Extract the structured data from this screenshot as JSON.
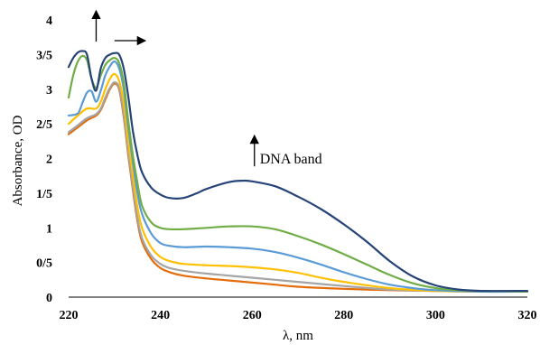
{
  "chart_data": {
    "type": "line",
    "title": "",
    "xlabel": "λ, nm",
    "ylabel": "Absorbance, OD",
    "xlim": [
      220,
      320
    ],
    "ylim": [
      0,
      4
    ],
    "x_ticks": [
      "220",
      "240",
      "260",
      "280",
      "300",
      "320"
    ],
    "y_ticks": [
      "0",
      "0/5",
      "1",
      "1/5",
      "2",
      "2/5",
      "3",
      "3/5",
      "4"
    ],
    "grid": false,
    "legend": "none",
    "annotations": [
      {
        "text": "DNA band",
        "arrow": "up",
        "x": 260.5,
        "y": 1.9
      },
      {
        "text": "",
        "arrow": "up",
        "x": 226,
        "y": 3.7
      },
      {
        "text": "",
        "arrow": "right",
        "x": 230,
        "y": 3.7
      }
    ],
    "series": [
      {
        "color": "#E46C0A",
        "points": [
          [
            220,
            2.35
          ],
          [
            222,
            2.45
          ],
          [
            224,
            2.55
          ],
          [
            226,
            2.62
          ],
          [
            227,
            2.7
          ],
          [
            228,
            2.85
          ],
          [
            229,
            3.0
          ],
          [
            230,
            3.08
          ],
          [
            231,
            3.0
          ],
          [
            232,
            2.6
          ],
          [
            233,
            2.05
          ],
          [
            234,
            1.55
          ],
          [
            235,
            1.1
          ],
          [
            236,
            0.8
          ],
          [
            238,
            0.55
          ],
          [
            240,
            0.42
          ],
          [
            242,
            0.36
          ],
          [
            245,
            0.31
          ],
          [
            250,
            0.27
          ],
          [
            255,
            0.24
          ],
          [
            260,
            0.21
          ],
          [
            265,
            0.18
          ],
          [
            270,
            0.15
          ],
          [
            280,
            0.12
          ],
          [
            290,
            0.1
          ],
          [
            300,
            0.09
          ],
          [
            310,
            0.08
          ],
          [
            320,
            0.08
          ]
        ]
      },
      {
        "color": "#A5A5A5",
        "points": [
          [
            220,
            2.38
          ],
          [
            222,
            2.48
          ],
          [
            224,
            2.58
          ],
          [
            226,
            2.64
          ],
          [
            227,
            2.72
          ],
          [
            228,
            2.88
          ],
          [
            229,
            3.02
          ],
          [
            230,
            3.1
          ],
          [
            231,
            3.02
          ],
          [
            232,
            2.65
          ],
          [
            233,
            2.1
          ],
          [
            234,
            1.6
          ],
          [
            235,
            1.15
          ],
          [
            236,
            0.85
          ],
          [
            238,
            0.6
          ],
          [
            240,
            0.48
          ],
          [
            242,
            0.42
          ],
          [
            245,
            0.38
          ],
          [
            250,
            0.34
          ],
          [
            255,
            0.31
          ],
          [
            260,
            0.28
          ],
          [
            265,
            0.25
          ],
          [
            270,
            0.22
          ],
          [
            280,
            0.16
          ],
          [
            290,
            0.11
          ],
          [
            300,
            0.09
          ],
          [
            310,
            0.08
          ],
          [
            320,
            0.08
          ]
        ]
      },
      {
        "color": "#FFC000",
        "points": [
          [
            220,
            2.5
          ],
          [
            222,
            2.62
          ],
          [
            224,
            2.72
          ],
          [
            226,
            2.72
          ],
          [
            227,
            2.82
          ],
          [
            228,
            3.0
          ],
          [
            229,
            3.15
          ],
          [
            230,
            3.22
          ],
          [
            231,
            3.12
          ],
          [
            232,
            2.8
          ],
          [
            233,
            2.25
          ],
          [
            234,
            1.75
          ],
          [
            235,
            1.3
          ],
          [
            236,
            1.0
          ],
          [
            238,
            0.72
          ],
          [
            240,
            0.58
          ],
          [
            242,
            0.52
          ],
          [
            245,
            0.48
          ],
          [
            250,
            0.46
          ],
          [
            255,
            0.45
          ],
          [
            260,
            0.43
          ],
          [
            265,
            0.4
          ],
          [
            270,
            0.35
          ],
          [
            275,
            0.28
          ],
          [
            280,
            0.22
          ],
          [
            290,
            0.13
          ],
          [
            300,
            0.09
          ],
          [
            310,
            0.08
          ],
          [
            320,
            0.08
          ]
        ]
      },
      {
        "color": "#5B9BD5",
        "points": [
          [
            220,
            2.62
          ],
          [
            222,
            2.65
          ],
          [
            223,
            2.8
          ],
          [
            224,
            2.95
          ],
          [
            225,
            2.97
          ],
          [
            226,
            2.82
          ],
          [
            227,
            2.98
          ],
          [
            228,
            3.2
          ],
          [
            229,
            3.33
          ],
          [
            230,
            3.4
          ],
          [
            231,
            3.3
          ],
          [
            232,
            3.0
          ],
          [
            233,
            2.45
          ],
          [
            234,
            1.95
          ],
          [
            235,
            1.5
          ],
          [
            236,
            1.2
          ],
          [
            238,
            0.92
          ],
          [
            240,
            0.78
          ],
          [
            242,
            0.74
          ],
          [
            245,
            0.72
          ],
          [
            250,
            0.73
          ],
          [
            255,
            0.72
          ],
          [
            260,
            0.7
          ],
          [
            265,
            0.65
          ],
          [
            270,
            0.57
          ],
          [
            275,
            0.47
          ],
          [
            280,
            0.36
          ],
          [
            285,
            0.26
          ],
          [
            290,
            0.18
          ],
          [
            295,
            0.13
          ],
          [
            300,
            0.1
          ],
          [
            310,
            0.08
          ],
          [
            320,
            0.08
          ]
        ]
      },
      {
        "color": "#70AD47",
        "points": [
          [
            220,
            2.88
          ],
          [
            221,
            3.2
          ],
          [
            222,
            3.4
          ],
          [
            223,
            3.48
          ],
          [
            224,
            3.42
          ],
          [
            225,
            3.15
          ],
          [
            226,
            3.02
          ],
          [
            227,
            3.2
          ],
          [
            228,
            3.35
          ],
          [
            229,
            3.42
          ],
          [
            230,
            3.45
          ],
          [
            231,
            3.38
          ],
          [
            232,
            3.1
          ],
          [
            233,
            2.55
          ],
          [
            234,
            2.05
          ],
          [
            235,
            1.65
          ],
          [
            236,
            1.32
          ],
          [
            238,
            1.08
          ],
          [
            240,
            1.0
          ],
          [
            242,
            0.98
          ],
          [
            245,
            0.98
          ],
          [
            250,
            1.0
          ],
          [
            255,
            1.02
          ],
          [
            260,
            1.02
          ],
          [
            265,
            0.98
          ],
          [
            270,
            0.88
          ],
          [
            275,
            0.76
          ],
          [
            280,
            0.62
          ],
          [
            285,
            0.47
          ],
          [
            290,
            0.32
          ],
          [
            295,
            0.2
          ],
          [
            300,
            0.13
          ],
          [
            305,
            0.1
          ],
          [
            310,
            0.09
          ],
          [
            320,
            0.08
          ]
        ]
      },
      {
        "color": "#264478",
        "points": [
          [
            220,
            3.32
          ],
          [
            221,
            3.45
          ],
          [
            222,
            3.53
          ],
          [
            223,
            3.55
          ],
          [
            224,
            3.5
          ],
          [
            225,
            3.15
          ],
          [
            226,
            2.98
          ],
          [
            227,
            3.3
          ],
          [
            228,
            3.45
          ],
          [
            229,
            3.5
          ],
          [
            230,
            3.52
          ],
          [
            231,
            3.5
          ],
          [
            232,
            3.3
          ],
          [
            233,
            2.9
          ],
          [
            234,
            2.4
          ],
          [
            235,
            2.05
          ],
          [
            236,
            1.8
          ],
          [
            238,
            1.58
          ],
          [
            240,
            1.48
          ],
          [
            242,
            1.43
          ],
          [
            245,
            1.43
          ],
          [
            248,
            1.5
          ],
          [
            250,
            1.56
          ],
          [
            255,
            1.66
          ],
          [
            258,
            1.68
          ],
          [
            260,
            1.67
          ],
          [
            265,
            1.6
          ],
          [
            270,
            1.45
          ],
          [
            275,
            1.27
          ],
          [
            280,
            1.05
          ],
          [
            285,
            0.8
          ],
          [
            290,
            0.52
          ],
          [
            295,
            0.3
          ],
          [
            300,
            0.17
          ],
          [
            305,
            0.11
          ],
          [
            310,
            0.09
          ],
          [
            320,
            0.09
          ]
        ]
      }
    ]
  }
}
